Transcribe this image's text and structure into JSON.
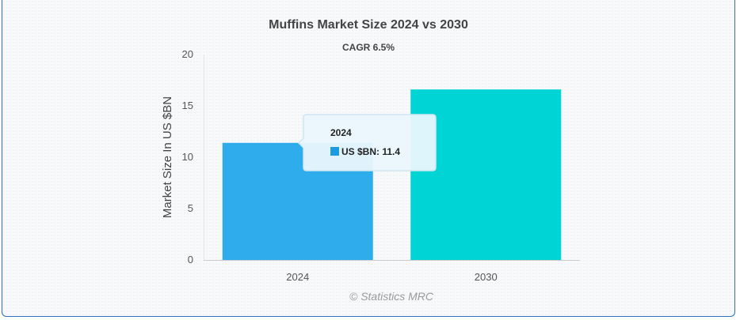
{
  "chart_data": {
    "type": "bar",
    "title": "Muffins Market Size 2024 vs 2030",
    "subtitle": "CAGR 6.5%",
    "categories": [
      "2024",
      "2030"
    ],
    "series": [
      {
        "name": "US $BN",
        "values": [
          11.4,
          16.6
        ]
      }
    ],
    "colors": [
      "#2eacec",
      "#00d4d4"
    ],
    "ylabel": "Market Size In US $BN",
    "xlabel": "",
    "ylim": [
      0,
      20
    ],
    "yticks": [
      "0",
      "5",
      "10",
      "15",
      "20"
    ],
    "grid": false,
    "legend": "none",
    "credit": "© Statistics MRC",
    "tooltip": {
      "title": "2024",
      "series_label": "US $BN",
      "value_text": "11.4",
      "text": "US $BN: 11.4",
      "swatch_color": "#1d9be0"
    }
  }
}
